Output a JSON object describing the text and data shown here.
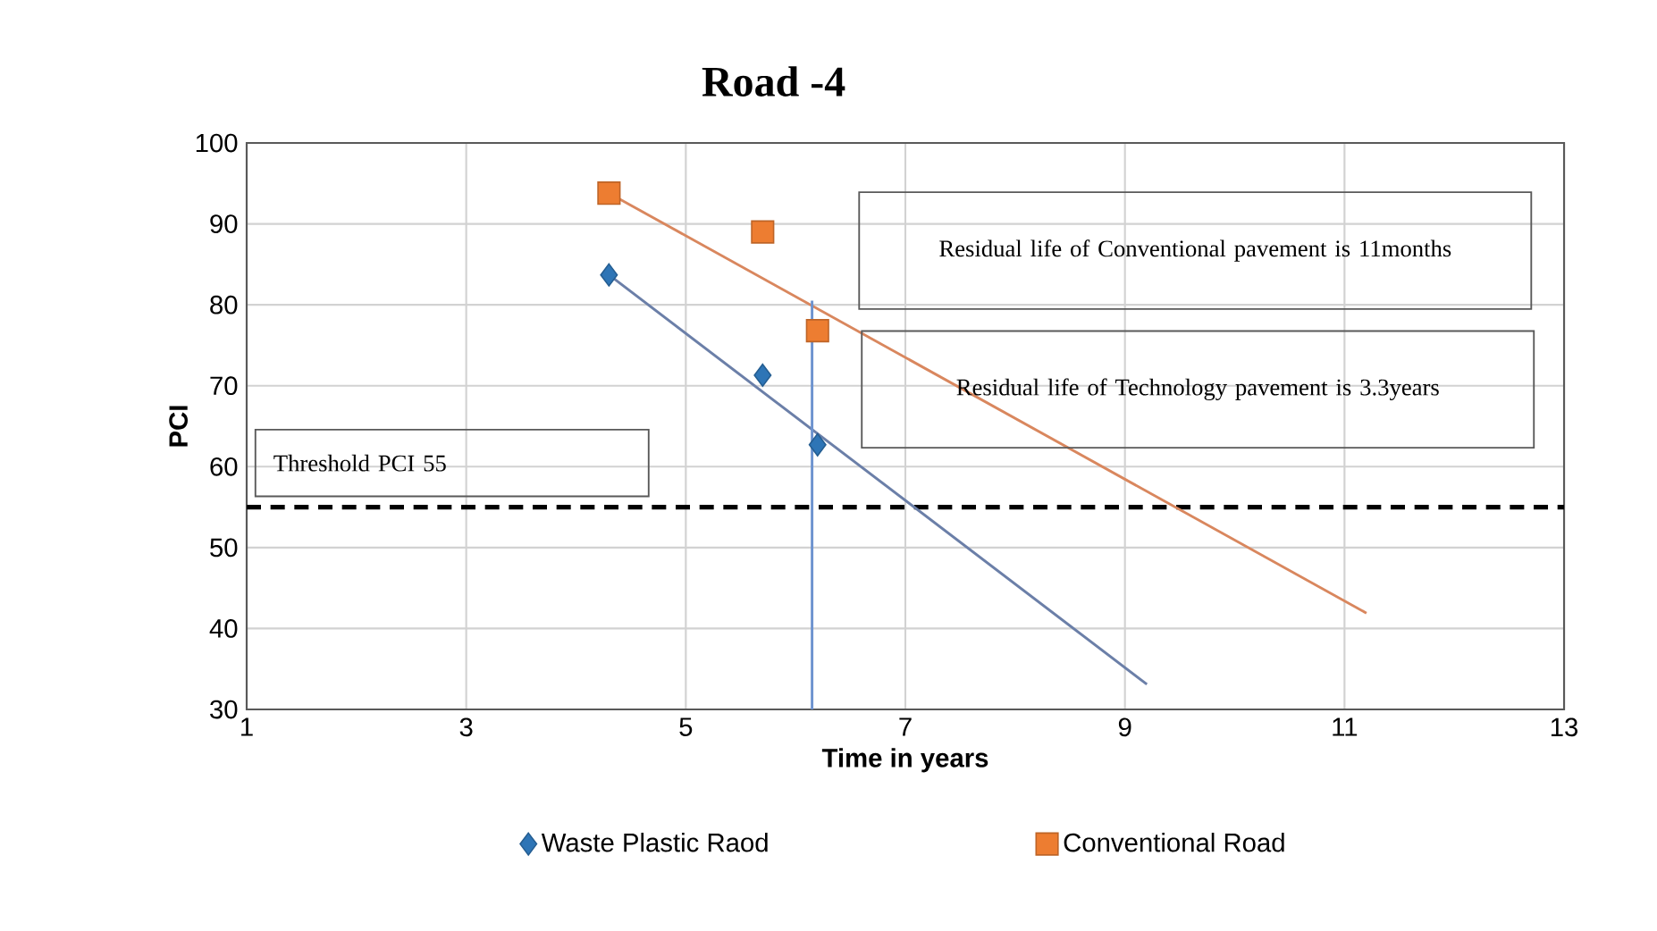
{
  "chart_data": {
    "type": "scatter",
    "title": "Road -4",
    "xlabel": "Time in years",
    "ylabel": "PCI",
    "xlim": [
      1,
      13
    ],
    "xticks": [
      1,
      3,
      5,
      7,
      9,
      11,
      13
    ],
    "ylim": [
      30,
      100
    ],
    "yticks": [
      30,
      40,
      50,
      60,
      70,
      80,
      90,
      100
    ],
    "grid": true,
    "legend": "bottom",
    "series": [
      {
        "name": "Waste Plastic Raod",
        "marker": "diamond",
        "color": "#2e75b6",
        "x": [
          4.3,
          5.7,
          6.2
        ],
        "values": [
          83.7,
          71.3,
          62.7
        ]
      },
      {
        "name": "Conventional Road",
        "marker": "square",
        "color": "#ed7d31",
        "x": [
          4.3,
          5.7,
          6.2
        ],
        "values": [
          93.8,
          89,
          76.8
        ]
      },
      {
        "type": "line",
        "color": "#6b7fa8",
        "x": [
          4.3,
          9.2
        ],
        "values": [
          83.7,
          33.1
        ]
      },
      {
        "type": "line",
        "color": "#d9875e",
        "x": [
          4.3,
          11.2
        ],
        "values": [
          93.8,
          41.9
        ]
      },
      {
        "type": "line",
        "color": "#6d93cf",
        "x": [
          6.15,
          6.15
        ],
        "values": [
          80.5,
          30
        ]
      }
    ],
    "ref_lines": [
      {
        "axis": "y",
        "value": 55,
        "label": "Threshold PCI 55",
        "color": "#000000",
        "line_style": "dashed"
      }
    ],
    "annotations": [
      "Residual life of Conventional pavement is 11months",
      "Residual life of Technology pavement is 3.3years"
    ]
  }
}
